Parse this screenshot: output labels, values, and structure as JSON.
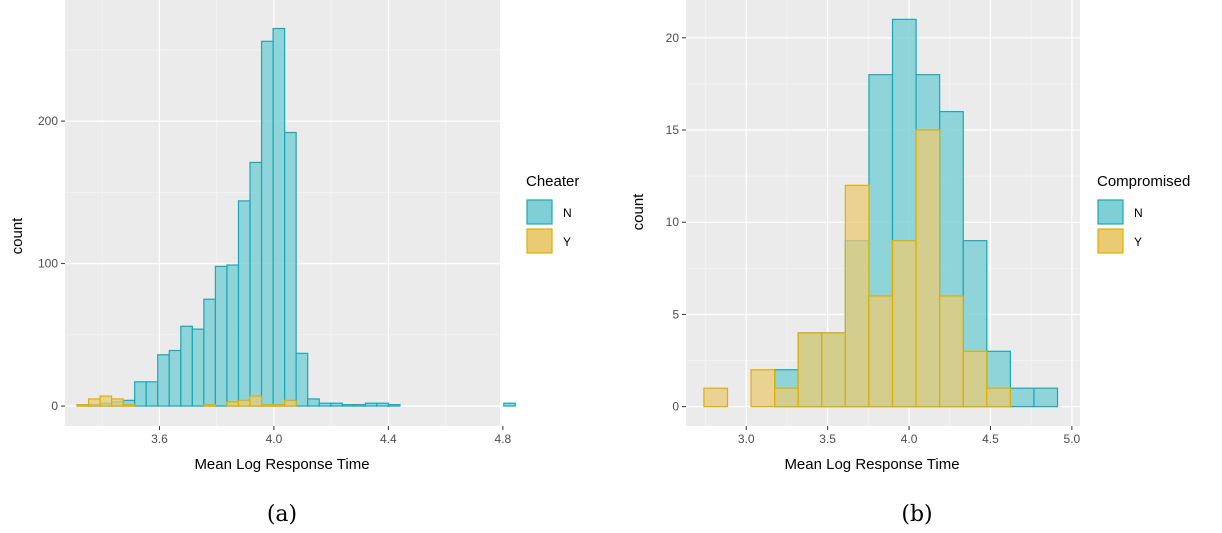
{
  "colors": {
    "panel_bg": "#ebebeb",
    "grid_major": "#ffffff",
    "grid_minor": "#f5f5f5",
    "N_fill": "#7fd0d6",
    "N_stroke": "#1aa7b8",
    "Y_fill": "#eacb74",
    "Y_stroke": "#e0b000"
  },
  "chart_data": [
    {
      "type": "histogram",
      "caption": "(a)",
      "xlabel": "Mean Log Response Time",
      "ylabel": "count",
      "xlim": [
        3.27,
        4.79
      ],
      "ylim": [
        -14,
        285
      ],
      "xticks": [
        3.6,
        4.0,
        4.4,
        4.8
      ],
      "xtick_labels": [
        "3.6",
        "4.0",
        "4.4",
        "4.8"
      ],
      "yticks": [
        0,
        100,
        200
      ],
      "ytick_labels": [
        "0",
        "100",
        "200"
      ],
      "legend": {
        "title": "Cheater",
        "entries": [
          "N",
          "Y"
        ],
        "position": "right"
      },
      "bin_start": 3.312,
      "bin_width": 0.0403,
      "series": [
        {
          "name": "N",
          "values": [
            1,
            1,
            2,
            3,
            4,
            17,
            17,
            36,
            39,
            56,
            54,
            75,
            98,
            99,
            144,
            171,
            256,
            265,
            192,
            37,
            5,
            2,
            2,
            1,
            1,
            2,
            2,
            1,
            0,
            0,
            0,
            0,
            0,
            0,
            0,
            0,
            0,
            2
          ]
        },
        {
          "name": "Y",
          "values": [
            1,
            5,
            7,
            5,
            1,
            0,
            0,
            0,
            0,
            0,
            0,
            1,
            0,
            3,
            4,
            7,
            1,
            1,
            4,
            0,
            0,
            0,
            0,
            0,
            0,
            0,
            0,
            0,
            0,
            0,
            0,
            0,
            0,
            0,
            0,
            0,
            0,
            0
          ]
        }
      ]
    },
    {
      "type": "histogram",
      "caption": "(b)",
      "xlabel": "Mean Log Response Time",
      "ylabel": "count",
      "xlim": [
        2.63,
        5.05
      ],
      "ylim": [
        -1.05,
        22.05
      ],
      "xticks": [
        3.0,
        3.5,
        4.0,
        4.5,
        5.0
      ],
      "xtick_labels": [
        "3.0",
        "3.5",
        "4.0",
        "4.5",
        "5.0"
      ],
      "yticks": [
        0,
        5,
        10,
        15,
        20
      ],
      "ytick_labels": [
        "0",
        "5",
        "10",
        "15",
        "20"
      ],
      "legend": {
        "title": "Compromised",
        "entries": [
          "N",
          "Y"
        ],
        "position": "right"
      },
      "bin_start": 2.74,
      "bin_width": 0.1448,
      "series": [
        {
          "name": "N",
          "values": [
            0,
            0,
            0,
            2,
            4,
            4,
            9,
            18,
            21,
            18,
            16,
            9,
            3,
            1,
            1
          ]
        },
        {
          "name": "Y",
          "values": [
            1,
            0,
            2,
            1,
            4,
            4,
            12,
            6,
            9,
            15,
            6,
            3,
            1,
            0,
            0
          ]
        }
      ]
    }
  ]
}
